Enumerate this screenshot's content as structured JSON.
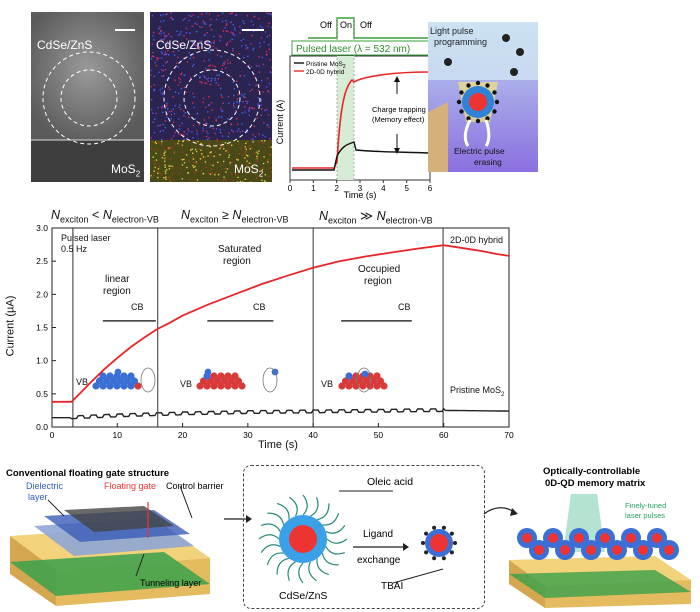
{
  "micrographs": {
    "left_label": "CdSe/ZnS",
    "left_bottom_label": "MoS",
    "right_label": "CdSe/ZnS",
    "right_bottom_label": "MoS"
  },
  "top_chart": {
    "off1": "Off",
    "on": "On",
    "off2": "Off",
    "banner": "Pulsed laser (λ = 532 nm)",
    "legend_pristine": "Pristine MoS",
    "legend_hybrid": "2D-0D hybrid",
    "ylabel": "Current (A)",
    "xlabel": "Time (s)",
    "xticks": [
      "0",
      "1",
      "2",
      "3",
      "4",
      "5",
      "6"
    ],
    "annotation_1": "Charge trapping",
    "annotation_2": "(Memory effect)"
  },
  "schematic_top": {
    "title_1": "Light pulse",
    "title_2": "programming",
    "erase_1": "Electric pulse",
    "erase_2": "erasing"
  },
  "main_chart": {
    "region_title_1": "N",
    "region_title_sub": "exciton",
    "region_title_rel1": "<",
    "region_title_rel2": "≥",
    "region_title_rel3": "≫",
    "region_title_rhs": "N",
    "region_title_rhs_sub": "electron-VB",
    "pulsed_label_1": "Pulsed laser",
    "pulsed_label_2": "0.5 Hz",
    "region1_1": "linear",
    "region1_2": "region",
    "region2_1": "Saturated",
    "region2_2": "region",
    "region3_1": "Occupied",
    "region3_2": "region",
    "cb": "CB",
    "vb": "VB",
    "hybrid_label": "2D-0D hybrid",
    "pristine_label": "Pristine MoS",
    "ylabel": "Current (µA)",
    "xlabel": "Time (s)"
  },
  "chart_data": {
    "type": "line",
    "xlabel": "Time (s)",
    "ylabel": "Current (µA)",
    "xlim": [
      0,
      70
    ],
    "ylim": [
      0.0,
      3.0
    ],
    "xticks": [
      0,
      10,
      20,
      30,
      40,
      50,
      60,
      70
    ],
    "yticks": [
      0.0,
      0.5,
      1.0,
      1.5,
      2.0,
      2.5,
      3.0
    ],
    "region_boundaries": [
      3.2,
      16.2,
      40.0,
      59.9
    ],
    "series": [
      {
        "name": "2D-0D hybrid",
        "color": "#e8262a",
        "x": [
          0,
          3,
          4,
          6,
          8,
          10,
          12,
          14,
          16,
          18,
          20,
          24,
          28,
          32,
          36,
          40,
          44,
          48,
          52,
          56,
          60,
          62,
          64,
          66,
          68,
          70
        ],
        "y": [
          0.38,
          0.38,
          0.48,
          0.68,
          0.87,
          1.04,
          1.2,
          1.34,
          1.47,
          1.57,
          1.68,
          1.85,
          2.0,
          2.15,
          2.28,
          2.4,
          2.5,
          2.57,
          2.63,
          2.69,
          2.74,
          2.71,
          2.68,
          2.65,
          2.61,
          2.58
        ]
      },
      {
        "name": "Pristine MoS2",
        "color": "#222222",
        "x": [
          0,
          3,
          10,
          20,
          30,
          40,
          50,
          60,
          70
        ],
        "y": [
          0.14,
          0.14,
          0.17,
          0.2,
          0.22,
          0.23,
          0.24,
          0.25,
          0.24
        ]
      }
    ]
  },
  "bottom_schematic": {
    "conv_title": "Conventional floating gate structure",
    "dielectric_1": "Dielectric",
    "dielectric_2": "layer",
    "floating_gate": "Floating gate",
    "control_barrier": "Control barrier",
    "tunneling": "Tunneling layer",
    "oleic": "Oleic acid",
    "ligand_1": "Ligand",
    "ligand_2": "exchange",
    "tbai": "TBAI",
    "cdse": "CdSe/ZnS",
    "matrix_1": "Optically-controllable",
    "matrix_2": "0D-QD memory matrix",
    "laser_1": "Finely-tuned",
    "laser_2": "laser pulses"
  }
}
